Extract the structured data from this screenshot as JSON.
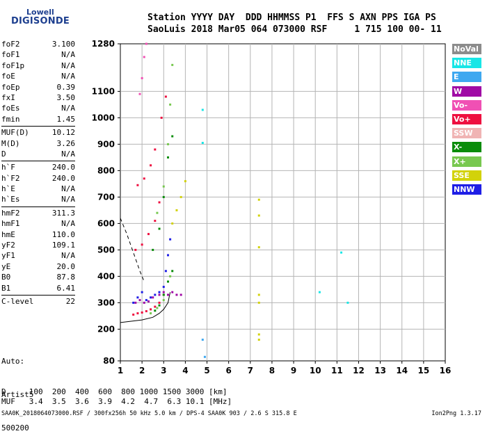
{
  "logo": {
    "line1": "Lowell",
    "line2": "DIGISONDE"
  },
  "header": {
    "line1": "Station YYYY DAY  DDD HHMMSS P1  FFS S AXN PPS IGA PS",
    "line2": "SaoLuis 2018 Mar05 064 073000 RSF     1 715 100 00- 11"
  },
  "params": {
    "group1": [
      {
        "label": "foF2",
        "value": "3.100"
      },
      {
        "label": "foF1",
        "value": "N/A"
      },
      {
        "label": "foF1p",
        "value": "N/A"
      },
      {
        "label": "foE",
        "value": "N/A"
      },
      {
        "label": "foEp",
        "value": "0.39"
      },
      {
        "label": "fxI",
        "value": "3.50"
      },
      {
        "label": "foEs",
        "value": "N/A"
      },
      {
        "label": "fmin",
        "value": "1.45"
      }
    ],
    "group2": [
      {
        "label": "MUF(D)",
        "value": "10.12"
      },
      {
        "label": "M(D)",
        "value": "3.26"
      },
      {
        "label": "D",
        "value": "N/A"
      }
    ],
    "group3": [
      {
        "label": "h`F",
        "value": "240.0"
      },
      {
        "label": "h`F2",
        "value": "240.0"
      },
      {
        "label": "h`E",
        "value": "N/A"
      },
      {
        "label": "h`Es",
        "value": "N/A"
      }
    ],
    "group4": [
      {
        "label": "hmF2",
        "value": "311.3"
      },
      {
        "label": "hmF1",
        "value": "N/A"
      },
      {
        "label": "hmE",
        "value": "110.0"
      },
      {
        "label": "yF2",
        "value": "109.1"
      },
      {
        "label": "yF1",
        "value": "N/A"
      },
      {
        "label": "yE",
        "value": "20.0"
      },
      {
        "label": "B0",
        "value": "87.8"
      },
      {
        "label": "B1",
        "value": "6.41"
      }
    ],
    "group5": [
      {
        "label": "C-level",
        "value": "22"
      }
    ]
  },
  "auto": {
    "l1": "Auto:",
    "l2": "Artist5",
    "l3": "500200"
  },
  "legend": [
    {
      "label": "NoVal",
      "color": "#8c8c8c"
    },
    {
      "label": "NNE",
      "color": "#19e6e6"
    },
    {
      "label": "E",
      "color": "#3ea8f0"
    },
    {
      "label": "W",
      "color": "#a00aa5"
    },
    {
      "label": "Vo-",
      "color": "#f050b4"
    },
    {
      "label": "Vo+",
      "color": "#ee1040"
    },
    {
      "label": "SSW",
      "color": "#f0b4b4"
    },
    {
      "label": "X-",
      "color": "#0a8c0a"
    },
    {
      "label": "X+",
      "color": "#78c850"
    },
    {
      "label": "SSE",
      "color": "#d2d20a"
    },
    {
      "label": "NNW",
      "color": "#1e1ee6"
    }
  ],
  "bottom": {
    "d_line": "D     100  200  400  600  800 1000 1500 3000 [km]",
    "muf_line": "MUF   3.4  3.5  3.6  3.9  4.2  4.7  6.3 10.1 [MHz]"
  },
  "footer": {
    "left": "SAA0K_2018064073000.RSF / 300fx256h 50 kHz 5.0 km / DPS-4 SAA0K 903 / 2.6 S 315.8 E",
    "right": "Ion2Png 1.3.17"
  },
  "chart_data": {
    "type": "scatter",
    "title": "",
    "xlabel": "",
    "ylabel": "",
    "xlim": [
      1,
      16
    ],
    "ylim": [
      80,
      1280
    ],
    "x_ticks": [
      1,
      2,
      3,
      4,
      5,
      6,
      7,
      8,
      9,
      10,
      11,
      12,
      13,
      14,
      15,
      16
    ],
    "y_ticks": [
      80,
      200,
      300,
      400,
      500,
      600,
      700,
      800,
      900,
      1000,
      1100,
      1280
    ],
    "y_tick_labels": [
      "80",
      "200",
      "300",
      "400",
      "500",
      "600",
      "700",
      "800",
      "900",
      "1000",
      "1100",
      "1280"
    ],
    "grid": true,
    "legend_position": "right",
    "series": [
      {
        "name": "W",
        "color": "#a00aa5",
        "points": [
          [
            1.7,
            300
          ],
          [
            1.9,
            310
          ],
          [
            2.1,
            300
          ],
          [
            2.3,
            305
          ],
          [
            2.5,
            320
          ],
          [
            2.8,
            330
          ],
          [
            3.0,
            340
          ],
          [
            3.2,
            330
          ],
          [
            3.4,
            340
          ],
          [
            3.6,
            330
          ],
          [
            3.8,
            330
          ]
        ]
      },
      {
        "name": "Vo+",
        "color": "#ee1040",
        "points": [
          [
            1.6,
            255
          ],
          [
            1.8,
            260
          ],
          [
            2.0,
            263
          ],
          [
            2.2,
            268
          ],
          [
            2.4,
            275
          ],
          [
            2.6,
            285
          ],
          [
            2.8,
            300
          ],
          [
            3.0,
            330
          ],
          [
            1.7,
            500
          ],
          [
            2.0,
            520
          ],
          [
            2.3,
            560
          ],
          [
            2.6,
            610
          ],
          [
            2.8,
            680
          ],
          [
            1.8,
            745
          ],
          [
            2.1,
            770
          ],
          [
            2.4,
            820
          ],
          [
            2.6,
            880
          ],
          [
            2.9,
            1000
          ],
          [
            3.1,
            1080
          ]
        ]
      },
      {
        "name": "Vo-",
        "color": "#f050b4",
        "points": [
          [
            1.9,
            1090
          ],
          [
            2.0,
            1150
          ],
          [
            2.1,
            1230
          ],
          [
            2.2,
            1280
          ]
        ]
      },
      {
        "name": "X-",
        "color": "#0a8c0a",
        "points": [
          [
            2.6,
            270
          ],
          [
            2.8,
            290
          ],
          [
            3.0,
            330
          ],
          [
            3.2,
            380
          ],
          [
            3.4,
            420
          ],
          [
            2.5,
            500
          ],
          [
            2.8,
            580
          ],
          [
            3.0,
            700
          ],
          [
            3.2,
            850
          ],
          [
            3.4,
            930
          ]
        ]
      },
      {
        "name": "X+",
        "color": "#78c850",
        "points": [
          [
            2.4,
            260
          ],
          [
            2.7,
            280
          ],
          [
            3.0,
            310
          ],
          [
            3.3,
            400
          ],
          [
            2.7,
            640
          ],
          [
            3.0,
            740
          ],
          [
            3.2,
            900
          ],
          [
            3.3,
            1050
          ],
          [
            3.4,
            1200
          ]
        ]
      },
      {
        "name": "NNW",
        "color": "#1e1ee6",
        "points": [
          [
            1.6,
            300
          ],
          [
            1.8,
            320
          ],
          [
            2.0,
            340
          ],
          [
            2.2,
            310
          ],
          [
            2.4,
            320
          ],
          [
            2.6,
            330
          ],
          [
            2.8,
            340
          ],
          [
            3.0,
            360
          ],
          [
            3.1,
            420
          ],
          [
            3.2,
            480
          ],
          [
            3.3,
            540
          ]
        ]
      },
      {
        "name": "SSE",
        "color": "#d2d20a",
        "points": [
          [
            3.4,
            600
          ],
          [
            3.6,
            650
          ],
          [
            3.8,
            700
          ],
          [
            4.0,
            760
          ],
          [
            7.4,
            690
          ],
          [
            7.4,
            630
          ],
          [
            7.4,
            510
          ],
          [
            7.4,
            330
          ],
          [
            7.4,
            300
          ],
          [
            7.4,
            180
          ],
          [
            7.4,
            160
          ]
        ]
      },
      {
        "name": "NNE",
        "color": "#19e6e6",
        "points": [
          [
            4.8,
            1030
          ],
          [
            4.8,
            905
          ],
          [
            11.2,
            490
          ],
          [
            11.5,
            300
          ],
          [
            10.2,
            340
          ]
        ]
      },
      {
        "name": "E",
        "color": "#3ea8f0",
        "points": [
          [
            4.9,
            95
          ],
          [
            4.8,
            160
          ]
        ]
      }
    ],
    "curves": [
      {
        "label": "profile-solid",
        "color": "#000000",
        "points": [
          [
            1.0,
            225
          ],
          [
            1.5,
            230
          ],
          [
            2.0,
            235
          ],
          [
            2.5,
            245
          ],
          [
            2.8,
            260
          ],
          [
            3.0,
            275
          ],
          [
            3.2,
            300
          ],
          [
            3.3,
            340
          ]
        ]
      },
      {
        "label": "profile-dashed",
        "color": "#000000",
        "points": [
          [
            1.0,
            620
          ],
          [
            1.3,
            560
          ],
          [
            1.6,
            490
          ],
          [
            1.9,
            420
          ],
          [
            2.1,
            380
          ]
        ]
      }
    ]
  }
}
